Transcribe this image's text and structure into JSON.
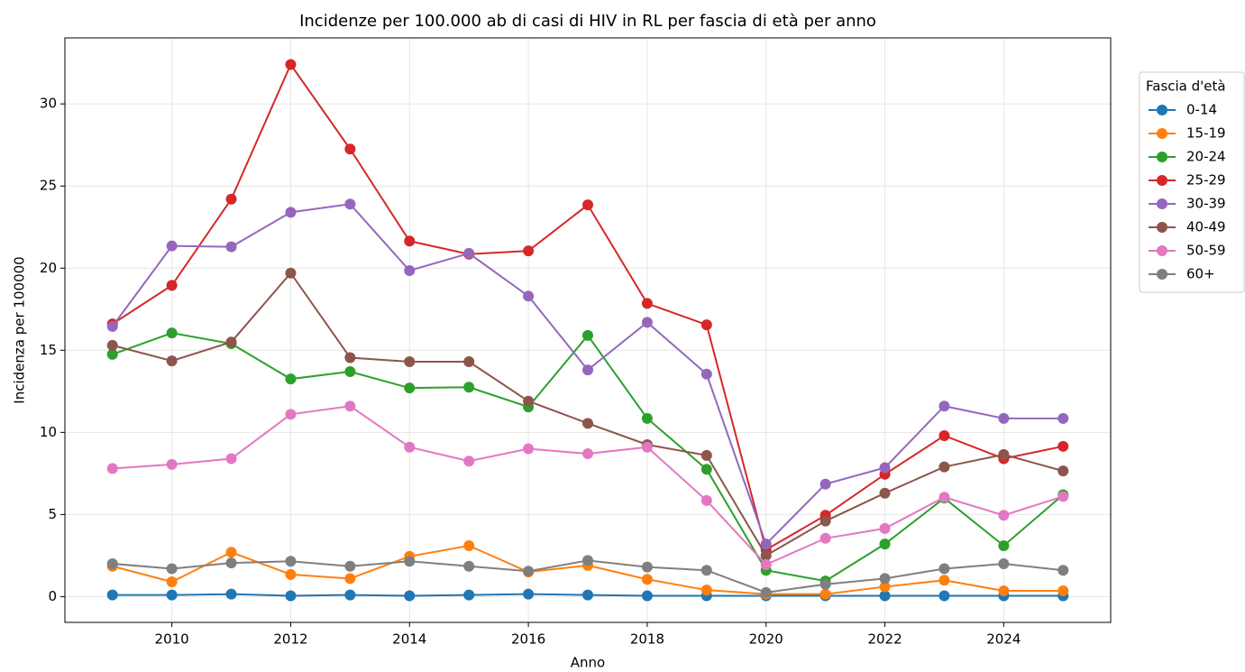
{
  "chart_data": {
    "type": "line",
    "title": "Incidenze per 100.000 ab di casi di HIV in RL per fascia di età per anno",
    "x_label": "Anno",
    "y_label": "Incidenza per 100000",
    "legend_title": "Fascia d'età",
    "legend": "outside-upper-right",
    "grid": true,
    "x": [
      2009,
      2010,
      2011,
      2012,
      2013,
      2014,
      2015,
      2016,
      2017,
      2018,
      2019,
      2020,
      2021,
      2022,
      2023,
      2024,
      2025
    ],
    "xlim": [
      2008.2,
      2025.8
    ],
    "xticks": [
      2010,
      2012,
      2014,
      2016,
      2018,
      2020,
      2022,
      2024
    ],
    "ylim": [
      -1.57,
      34.02
    ],
    "yticks": [
      0,
      5,
      10,
      15,
      20,
      25,
      30
    ],
    "series": [
      {
        "name": "0-14",
        "color": "#1f77b4",
        "values": [
          0.1,
          0.1,
          0.15,
          0.05,
          0.1,
          0.05,
          0.1,
          0.15,
          0.1,
          0.05,
          0.05,
          0.05,
          0.05,
          0.05,
          0.05,
          0.05,
          0.05
        ]
      },
      {
        "name": "15-19",
        "color": "#ff7f0e",
        "values": [
          1.85,
          0.9,
          2.7,
          1.35,
          1.1,
          2.45,
          3.1,
          1.5,
          1.9,
          1.05,
          0.4,
          0.15,
          0.15,
          0.6,
          1.0,
          0.35,
          0.35
        ]
      },
      {
        "name": "20-24",
        "color": "#2ca02c",
        "values": [
          14.75,
          16.05,
          15.4,
          13.25,
          13.7,
          12.7,
          12.75,
          11.55,
          15.9,
          10.85,
          7.75,
          1.6,
          0.95,
          3.2,
          6.0,
          3.1,
          6.2
        ]
      },
      {
        "name": "25-29",
        "color": "#d62728",
        "values": [
          16.6,
          18.95,
          24.2,
          32.4,
          27.25,
          21.65,
          20.85,
          21.05,
          23.85,
          17.85,
          16.55,
          2.85,
          4.95,
          7.45,
          9.8,
          8.4,
          9.15
        ]
      },
      {
        "name": "30-39",
        "color": "#9467bd",
        "values": [
          16.45,
          21.35,
          21.3,
          23.4,
          23.9,
          19.85,
          20.9,
          18.3,
          13.8,
          16.7,
          13.55,
          3.2,
          6.85,
          7.85,
          11.6,
          10.85,
          10.85
        ]
      },
      {
        "name": "40-49",
        "color": "#8c564b",
        "values": [
          15.3,
          14.35,
          15.5,
          19.7,
          14.55,
          14.3,
          14.3,
          11.9,
          10.55,
          9.25,
          8.6,
          2.5,
          4.6,
          6.3,
          7.9,
          8.65,
          7.65
        ]
      },
      {
        "name": "50-59",
        "color": "#e377c2",
        "values": [
          7.8,
          8.05,
          8.4,
          11.1,
          11.6,
          9.1,
          8.25,
          9.0,
          8.7,
          9.1,
          5.85,
          1.95,
          3.55,
          4.15,
          6.05,
          4.95,
          6.1
        ]
      },
      {
        "name": "60+",
        "color": "#7f7f7f",
        "values": [
          2.0,
          1.7,
          2.05,
          2.15,
          1.85,
          2.15,
          1.85,
          1.55,
          2.2,
          1.8,
          1.6,
          0.25,
          0.75,
          1.1,
          1.7,
          2.0,
          1.6
        ]
      }
    ]
  }
}
